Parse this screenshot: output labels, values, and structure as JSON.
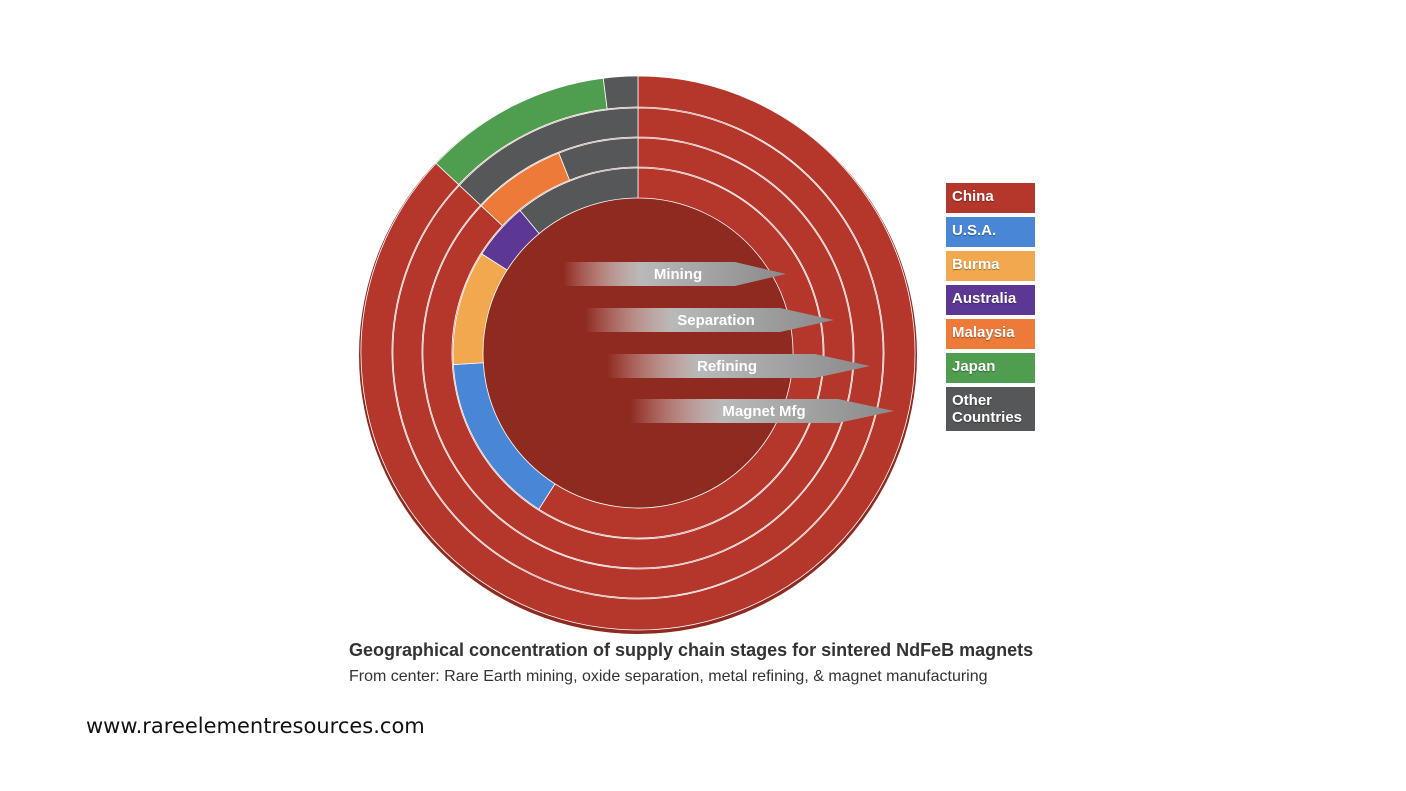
{
  "chart_data": {
    "type": "pie",
    "subtype": "multi-ring donut",
    "title": "Geographical concentration of supply chain stages for sintered NdFeB magnets",
    "subtitle": "From center: Rare Earth mining, oxide separation, metal refining, & magnet manufacturing",
    "legend_position": "right",
    "countries": [
      {
        "name": "China",
        "color": "#b5362a"
      },
      {
        "name": "U.S.A.",
        "color": "#4a86d6"
      },
      {
        "name": "Burma",
        "color": "#f1a84f"
      },
      {
        "name": "Australia",
        "color": "#5c3794"
      },
      {
        "name": "Malaysia",
        "color": "#ee7a3a"
      },
      {
        "name": "Japan",
        "color": "#4f9e50"
      },
      {
        "name": "Other Countries",
        "color": "#565758"
      }
    ],
    "series": [
      {
        "name": "Mining",
        "values": {
          "China": 59,
          "U.S.A.": 15,
          "Burma": 10,
          "Australia": 5,
          "Other Countries": 11
        }
      },
      {
        "name": "Separation",
        "values": {
          "China": 87,
          "Malaysia": 7,
          "Other Countries": 6
        }
      },
      {
        "name": "Refining",
        "values": {
          "China": 87,
          "Other Countries": 13
        }
      },
      {
        "name": "Magnet Mfg",
        "values": {
          "China": 87,
          "Japan": 11,
          "Other Countries": 2
        }
      }
    ]
  },
  "labels": {
    "stages": [
      "Mining",
      "Separation",
      "Refining",
      "Magnet Mfg"
    ],
    "legend": [
      "China",
      "U.S.A.",
      "Burma",
      "Australia",
      "Malaysia",
      "Japan",
      "Other Countries"
    ],
    "legend_display": [
      "China",
      "U.S.A.",
      "Burma",
      "Australia",
      "Malaysia",
      "Japan",
      "Other\nCountries"
    ]
  },
  "caption": {
    "title": "Geographical concentration of supply chain stages for sintered NdFeB magnets",
    "subtitle": "From center: Rare Earth mining, oxide separation, metal refining, & magnet manufacturing"
  },
  "source": "www.rareelementresources.com"
}
